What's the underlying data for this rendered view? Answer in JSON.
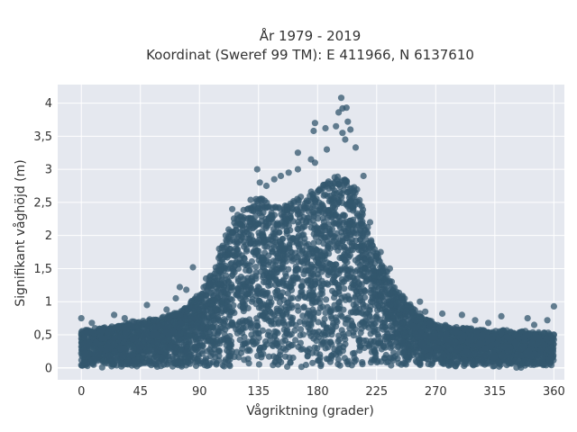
{
  "chart_data": {
    "type": "scatter",
    "title_lines": [
      "År 1979 - 2019",
      "Koordinat (Sweref 99 TM): E 411966, N 6137610"
    ],
    "xlabel": "Vågriktning (grader)",
    "ylabel": "Signifikant våghöjd (m)",
    "xlim": [
      -18,
      368
    ],
    "ylim": [
      -0.18,
      4.28
    ],
    "xticks": [
      0,
      45,
      90,
      135,
      180,
      225,
      270,
      315,
      360
    ],
    "xtick_labels": [
      "0",
      "45",
      "90",
      "135",
      "180",
      "225",
      "270",
      "315",
      "360"
    ],
    "yticks": [
      0,
      0.5,
      1,
      1.5,
      2,
      2.5,
      3,
      3.5,
      4
    ],
    "ytick_labels": [
      "0",
      "0,5",
      "1",
      "1,5",
      "2",
      "2,5",
      "3",
      "3,5",
      "4"
    ],
    "grid": true,
    "point_color": "#33576e",
    "plot_background": "#e5e8ef",
    "envelope": {
      "description_series": "upper envelope of wave height (m) by direction (deg)",
      "x": [
        0,
        20,
        45,
        60,
        75,
        90,
        100,
        110,
        120,
        135,
        150,
        165,
        180,
        190,
        200,
        210,
        220,
        230,
        240,
        255,
        270,
        290,
        315,
        340,
        360
      ],
      "y": [
        0.55,
        0.62,
        0.7,
        0.75,
        0.85,
        1.1,
        1.45,
        2.0,
        2.4,
        2.6,
        2.45,
        2.55,
        2.75,
        2.85,
        2.9,
        2.7,
        2.0,
        1.55,
        1.2,
        0.85,
        0.65,
        0.6,
        0.55,
        0.55,
        0.5
      ]
    },
    "outliers": [
      {
        "x": 198,
        "y": 4.08
      },
      {
        "x": 199,
        "y": 3.92
      },
      {
        "x": 202,
        "y": 3.93
      },
      {
        "x": 196,
        "y": 3.86
      },
      {
        "x": 178,
        "y": 3.7
      },
      {
        "x": 203,
        "y": 3.72
      },
      {
        "x": 194,
        "y": 3.65
      },
      {
        "x": 186,
        "y": 3.62
      },
      {
        "x": 199,
        "y": 3.55
      },
      {
        "x": 205,
        "y": 3.6
      },
      {
        "x": 177,
        "y": 3.58
      },
      {
        "x": 201,
        "y": 3.45
      },
      {
        "x": 165,
        "y": 3.25
      },
      {
        "x": 209,
        "y": 3.33
      },
      {
        "x": 187,
        "y": 3.3
      },
      {
        "x": 175,
        "y": 3.15
      },
      {
        "x": 165,
        "y": 3.0
      },
      {
        "x": 134,
        "y": 3.0
      },
      {
        "x": 152,
        "y": 2.9
      },
      {
        "x": 178,
        "y": 3.1
      },
      {
        "x": 147,
        "y": 2.85
      },
      {
        "x": 141,
        "y": 2.75
      },
      {
        "x": 136,
        "y": 2.8
      },
      {
        "x": 158,
        "y": 2.95
      },
      {
        "x": 85,
        "y": 1.52
      },
      {
        "x": 75,
        "y": 1.22
      },
      {
        "x": 80,
        "y": 1.18
      },
      {
        "x": 72,
        "y": 1.05
      },
      {
        "x": 245,
        "y": 1.05
      },
      {
        "x": 258,
        "y": 1.0
      },
      {
        "x": 240,
        "y": 1.15
      },
      {
        "x": 262,
        "y": 0.85
      },
      {
        "x": 360,
        "y": 0.93
      },
      {
        "x": 0,
        "y": 0.75
      },
      {
        "x": 50,
        "y": 0.95
      },
      {
        "x": 65,
        "y": 0.88
      },
      {
        "x": 275,
        "y": 0.82
      },
      {
        "x": 290,
        "y": 0.8
      },
      {
        "x": 300,
        "y": 0.72
      },
      {
        "x": 320,
        "y": 0.78
      },
      {
        "x": 340,
        "y": 0.75
      },
      {
        "x": 355,
        "y": 0.72
      },
      {
        "x": 25,
        "y": 0.8
      },
      {
        "x": 33,
        "y": 0.75
      },
      {
        "x": 40,
        "y": 0.7
      },
      {
        "x": 8,
        "y": 0.68
      },
      {
        "x": 310,
        "y": 0.68
      },
      {
        "x": 345,
        "y": 0.65
      },
      {
        "x": 215,
        "y": 2.9
      },
      {
        "x": 220,
        "y": 2.2
      },
      {
        "x": 228,
        "y": 1.75
      },
      {
        "x": 235,
        "y": 1.5
      },
      {
        "x": 115,
        "y": 2.4
      },
      {
        "x": 110,
        "y": 2.0
      },
      {
        "x": 105,
        "y": 1.8
      },
      {
        "x": 95,
        "y": 1.35
      }
    ]
  }
}
